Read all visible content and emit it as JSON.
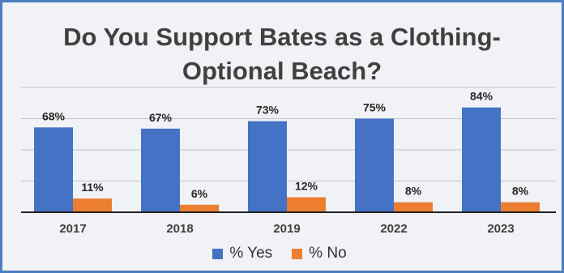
{
  "chart_data": {
    "type": "bar",
    "title_line1": "Do You Support Bates as a Clothing-",
    "title_line2": "Optional Beach?",
    "categories": [
      "2017",
      "2018",
      "2019",
      "2022",
      "2023"
    ],
    "series": [
      {
        "name": "% Yes",
        "color": "#4472c4",
        "values": [
          68,
          67,
          73,
          75,
          84
        ],
        "labels": [
          "68%",
          "67%",
          "73%",
          "75%",
          "84%"
        ]
      },
      {
        "name": "% No",
        "color": "#ed7d31",
        "values": [
          11,
          6,
          12,
          8,
          8
        ],
        "labels": [
          "11%",
          "6%",
          "12%",
          "8%",
          "8%"
        ]
      }
    ],
    "ylim": [
      0,
      100
    ],
    "grid": true,
    "legend": "bottom"
  }
}
